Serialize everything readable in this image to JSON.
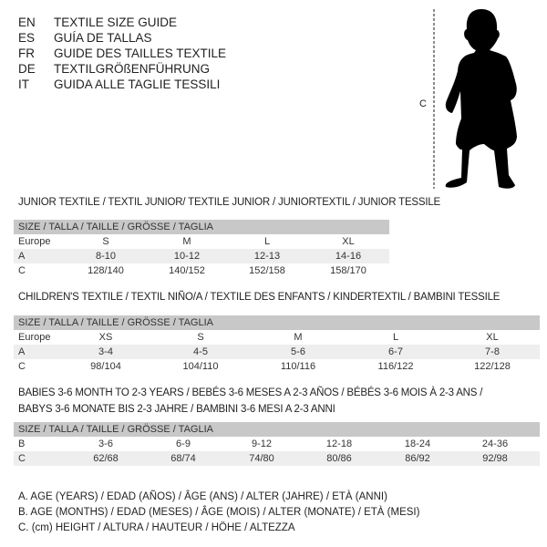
{
  "title_lines": [
    {
      "code": "EN",
      "text": "TEXTILE SIZE GUIDE"
    },
    {
      "code": "ES",
      "text": "GUÍA DE TALLAS"
    },
    {
      "code": "FR",
      "text": "GUIDE DES TAILLES TEXTILE"
    },
    {
      "code": "DE",
      "text": "TEXTILGRÖßENFÜHRUNG"
    },
    {
      "code": "IT",
      "text": "GUIDA ALLE TAGLIE TESSILI"
    }
  ],
  "figure": {
    "label": "C",
    "icon": "baby-silhouette"
  },
  "tables": [
    {
      "heading": "JUNIOR TEXTILE / TEXTIL JUNIOR/ TEXTILE JUNIOR / JUNIORTEXTIL / JUNIOR TESSILE",
      "header": "SIZE / TALLA / TAILLE / GRÖSSE / TAGLIA",
      "rows": [
        {
          "label": "Europe",
          "cells": [
            "S",
            "M",
            "L",
            "XL"
          ]
        },
        {
          "label": "A",
          "cells": [
            "8-10",
            "10-12",
            "12-13",
            "14-16"
          ]
        },
        {
          "label": "C",
          "cells": [
            "128/140",
            "140/152",
            "152/158",
            "158/170"
          ]
        }
      ]
    },
    {
      "heading": "CHILDREN'S TEXTILE / TEXTIL NIÑO/A / TEXTILE DES ENFANTS / KINDERTEXTIL / BAMBINI TESSILE",
      "header": "SIZE / TALLA / TAILLE / GRÖSSE / TAGLIA",
      "rows": [
        {
          "label": "Europe",
          "cells": [
            "XS",
            "S",
            "M",
            "L",
            "XL"
          ]
        },
        {
          "label": "A",
          "cells": [
            "3-4",
            "4-5",
            "5-6",
            "6-7",
            "7-8"
          ]
        },
        {
          "label": "C",
          "cells": [
            "98/104",
            "104/110",
            "110/116",
            "116/122",
            "122/128"
          ]
        }
      ]
    },
    {
      "heading": "BABIES 3-6 MONTH TO 2-3 YEARS / BEBÉS 3-6 MESES A 2-3 AÑOS / BÉBÉS 3-6 MOIS À 2-3 ANS /",
      "heading2": "BABYS 3-6 MONATE BIS 2-3 JAHRE / BAMBINI 3-6 MESI A 2-3 ANNI",
      "header": "SIZE / TALLA / TAILLE / GRÖSSE / TAGLIA",
      "rows": [
        {
          "label": "B",
          "cells": [
            "3-6",
            "6-9",
            "9-12",
            "12-18",
            "18-24",
            "24-36"
          ]
        },
        {
          "label": "C",
          "cells": [
            "62/68",
            "68/74",
            "74/80",
            "80/86",
            "86/92",
            "92/98"
          ]
        }
      ]
    }
  ],
  "legend": [
    "A. AGE (YEARS) / EDAD (AÑOS) / ÂGE (ANS) / ALTER (JAHRE) / ETÀ (ANNI)",
    "B. AGE (MONTHS) / EDAD (MESES) / ÂGE (MOIS) / ALTER (MONATE) / ETÀ (MESI)",
    "C. (cm) HEIGHT / ALTURA / HAUTEUR / HÖHE / ALTEZZA"
  ]
}
